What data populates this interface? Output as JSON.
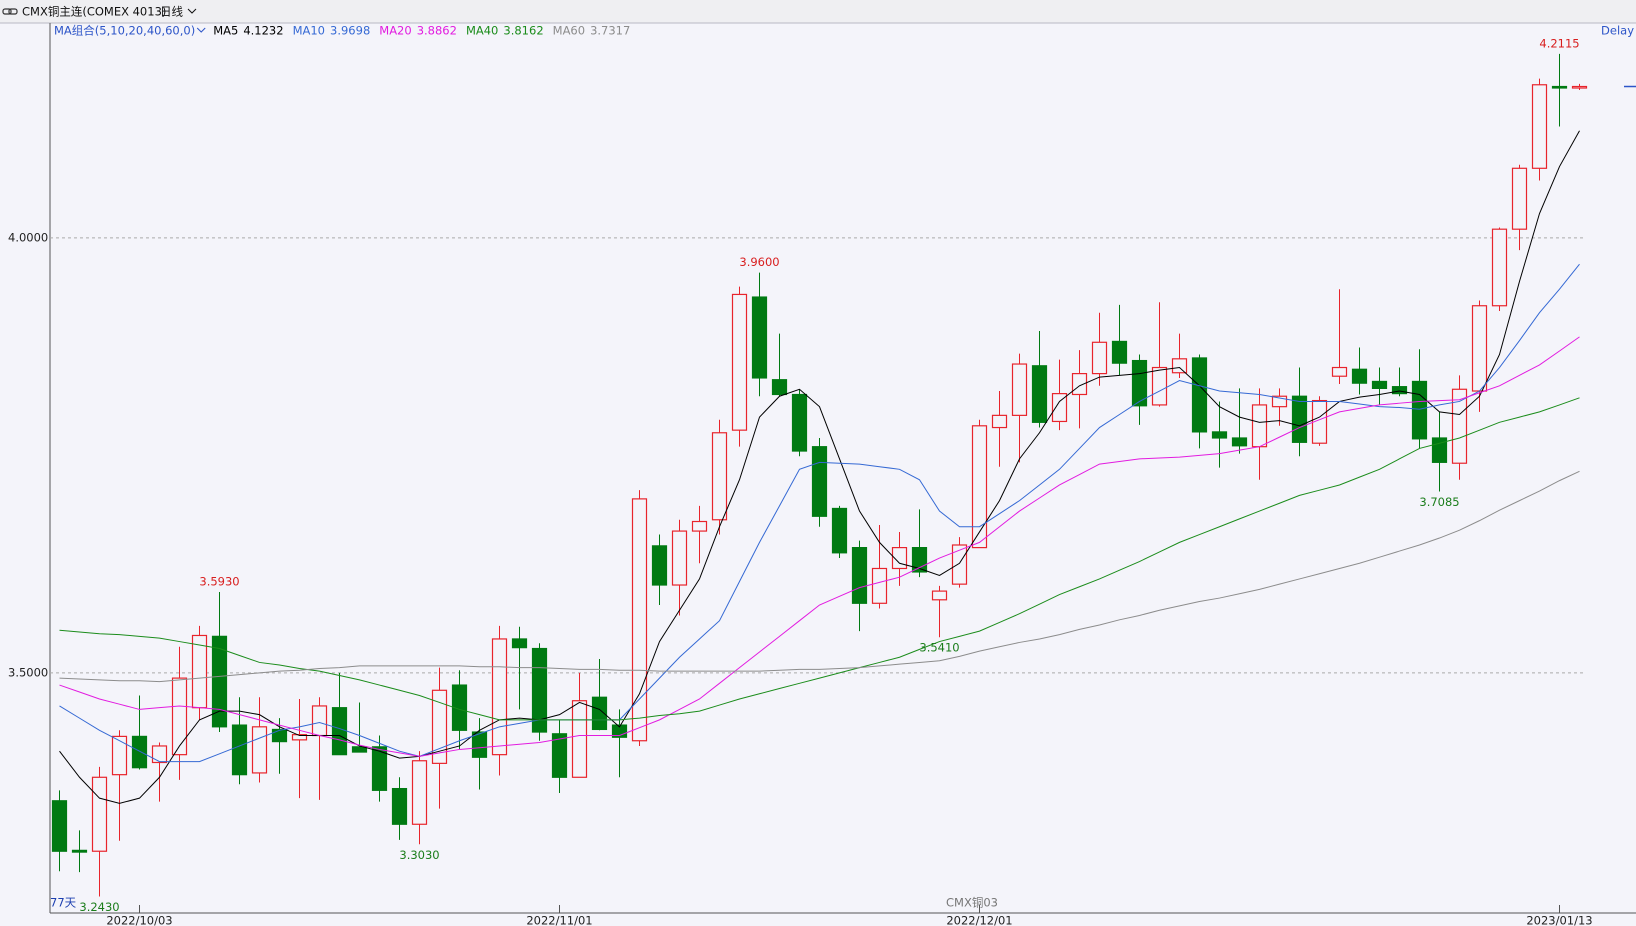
{
  "chart_data": {
    "type": "candlestick",
    "title": "CMX铜主连(COMEX 4013)",
    "period": "日线",
    "status": "Delay",
    "indicator": "MA组合(5,10,20,40,60,0)",
    "count_label": "77天",
    "footer": "CMX铜03",
    "up_color": "#e8242c",
    "down_color": "#007a12",
    "categories": [
      null,
      null,
      null,
      null,
      "2022/10/03",
      null,
      null,
      null,
      null,
      null,
      null,
      null,
      null,
      null,
      null,
      null,
      null,
      null,
      null,
      null,
      null,
      null,
      null,
      null,
      null,
      "2022/11/01",
      null,
      null,
      null,
      null,
      null,
      null,
      null,
      null,
      null,
      null,
      null,
      null,
      null,
      null,
      null,
      null,
      null,
      null,
      null,
      null,
      "2022/12/01",
      null,
      null,
      null,
      null,
      null,
      null,
      null,
      null,
      null,
      null,
      null,
      null,
      null,
      null,
      null,
      null,
      null,
      null,
      null,
      null,
      null,
      null,
      null,
      null,
      null,
      null,
      null,
      null,
      "2023/01/13",
      null
    ],
    "open": [
      3.353,
      3.296,
      3.295,
      3.383,
      3.427,
      3.397,
      3.406,
      3.46,
      3.542,
      3.44,
      3.385,
      3.435,
      3.423,
      3.428,
      3.46,
      3.415,
      3.415,
      3.367,
      3.326,
      3.396,
      3.486,
      3.432,
      3.406,
      3.539,
      3.528,
      3.43,
      3.38,
      3.472,
      3.44,
      3.422,
      3.646,
      3.601,
      3.663,
      3.676,
      3.779,
      3.932,
      3.837,
      3.82,
      3.76,
      3.689,
      3.644,
      3.58,
      3.62,
      3.644,
      3.584,
      3.602,
      3.644,
      3.782,
      3.796,
      3.853,
      3.789,
      3.82,
      3.844,
      3.881,
      3.859,
      3.808,
      3.845,
      3.862,
      3.777,
      3.77,
      3.76,
      3.806,
      3.818,
      3.764,
      3.841,
      3.849,
      3.835,
      3.829,
      3.835,
      3.77,
      3.741,
      3.824,
      3.922,
      4.01,
      4.08,
      4.174,
      4.173
    ],
    "high": [
      3.365,
      3.319,
      3.392,
      3.434,
      3.474,
      3.42,
      3.53,
      3.554,
      3.593,
      3.472,
      3.472,
      3.448,
      3.47,
      3.472,
      3.5,
      3.466,
      3.428,
      3.38,
      3.41,
      3.506,
      3.503,
      3.448,
      3.554,
      3.553,
      3.534,
      3.446,
      3.5,
      3.516,
      3.458,
      3.71,
      3.659,
      3.676,
      3.692,
      3.791,
      3.944,
      3.96,
      3.89,
      3.826,
      3.77,
      3.692,
      3.652,
      3.67,
      3.662,
      3.688,
      3.6,
      3.656,
      3.791,
      3.824,
      3.867,
      3.893,
      3.86,
      3.871,
      3.914,
      3.923,
      3.866,
      3.926,
      3.89,
      3.866,
      3.812,
      3.827,
      3.827,
      3.827,
      3.851,
      3.818,
      3.941,
      3.874,
      3.851,
      3.851,
      3.872,
      3.8,
      3.842,
      3.928,
      4.012,
      4.084,
      4.183,
      4.2115,
      4.177
    ],
    "low": [
      3.272,
      3.271,
      3.243,
      3.307,
      3.389,
      3.352,
      3.377,
      3.446,
      3.432,
      3.372,
      3.374,
      3.384,
      3.356,
      3.354,
      3.406,
      3.409,
      3.352,
      3.308,
      3.303,
      3.344,
      3.412,
      3.366,
      3.382,
      3.458,
      3.422,
      3.362,
      3.38,
      3.434,
      3.38,
      3.416,
      3.578,
      3.566,
      3.626,
      3.659,
      3.76,
      3.818,
      3.818,
      3.749,
      3.668,
      3.632,
      3.548,
      3.574,
      3.6,
      3.61,
      3.541,
      3.598,
      3.644,
      3.737,
      3.742,
      3.782,
      3.779,
      3.781,
      3.83,
      3.842,
      3.785,
      3.806,
      3.839,
      3.758,
      3.736,
      3.752,
      3.722,
      3.784,
      3.749,
      3.761,
      3.832,
      3.82,
      3.808,
      3.818,
      3.758,
      3.7085,
      3.722,
      3.8,
      3.916,
      3.986,
      4.066,
      4.128,
      4.17
    ],
    "close": [
      3.295,
      3.294,
      3.38,
      3.427,
      3.391,
      3.416,
      3.494,
      3.543,
      3.438,
      3.383,
      3.438,
      3.421,
      3.429,
      3.462,
      3.406,
      3.409,
      3.365,
      3.326,
      3.399,
      3.48,
      3.434,
      3.403,
      3.539,
      3.529,
      3.432,
      3.38,
      3.468,
      3.435,
      3.426,
      3.7,
      3.601,
      3.663,
      3.674,
      3.776,
      3.935,
      3.839,
      3.82,
      3.755,
      3.68,
      3.638,
      3.58,
      3.62,
      3.644,
      3.616,
      3.594,
      3.647,
      3.784,
      3.796,
      3.855,
      3.788,
      3.821,
      3.844,
      3.88,
      3.856,
      3.807,
      3.851,
      3.861,
      3.777,
      3.77,
      3.761,
      3.808,
      3.818,
      3.765,
      3.813,
      3.851,
      3.833,
      3.827,
      3.821,
      3.769,
      3.742,
      3.826,
      3.922,
      4.01,
      4.08,
      4.176,
      4.173,
      4.174
    ],
    "annotations": [
      {
        "index": 8,
        "of": "high",
        "label": "3.5930"
      },
      {
        "index": 35,
        "of": "high",
        "label": "3.9600"
      },
      {
        "index": 75,
        "of": "high",
        "label": "4.2115"
      },
      {
        "index": 2,
        "of": "low",
        "label": "3.2430"
      },
      {
        "index": 18,
        "of": "low",
        "label": "3.3030"
      },
      {
        "index": 44,
        "of": "low",
        "label": "3.5410"
      },
      {
        "index": 69,
        "of": "low",
        "label": "3.7085"
      }
    ],
    "series": [
      {
        "name": "MA5",
        "color": "#000000",
        "values": [
          3.41,
          3.38,
          3.356,
          3.35,
          3.356,
          3.38,
          3.416,
          3.446,
          3.456,
          3.456,
          3.452,
          3.438,
          3.428,
          3.428,
          3.428,
          3.416,
          3.41,
          3.402,
          3.404,
          3.41,
          3.416,
          3.434,
          3.446,
          3.448,
          3.446,
          3.452,
          3.466,
          3.458,
          3.438,
          3.476,
          3.536,
          3.572,
          3.608,
          3.668,
          3.722,
          3.794,
          3.818,
          3.826,
          3.806,
          3.746,
          3.686,
          3.65,
          3.626,
          3.62,
          3.612,
          3.626,
          3.662,
          3.698,
          3.746,
          3.776,
          3.812,
          3.83,
          3.84,
          3.842,
          3.844,
          3.848,
          3.851,
          3.83,
          3.806,
          3.794,
          3.788,
          3.79,
          3.784,
          3.794,
          3.812,
          3.817,
          3.82,
          3.824,
          3.82,
          3.8,
          3.797,
          3.818,
          3.866,
          3.95,
          4.028,
          4.082,
          4.1232
        ]
      },
      {
        "name": "MA10",
        "color": "#3569d4",
        "values": [
          3.462,
          3.448,
          3.434,
          3.422,
          3.41,
          3.398,
          3.398,
          3.398,
          3.407,
          3.416,
          3.425,
          3.434,
          3.438,
          3.443,
          3.436,
          3.428,
          3.419,
          3.41,
          3.404,
          3.413,
          3.422,
          3.43,
          3.438,
          3.442,
          3.446,
          3.446,
          3.446,
          3.446,
          3.446,
          3.47,
          3.494,
          3.518,
          3.539,
          3.56,
          3.605,
          3.65,
          3.692,
          3.734,
          3.742,
          3.741,
          3.74,
          3.737,
          3.734,
          3.722,
          3.686,
          3.668,
          3.668,
          3.683,
          3.698,
          3.716,
          3.734,
          3.758,
          3.782,
          3.797,
          3.812,
          3.824,
          3.836,
          3.83,
          3.824,
          3.822,
          3.82,
          3.816,
          3.812,
          3.812,
          3.812,
          3.809,
          3.806,
          3.805,
          3.803,
          3.808,
          3.812,
          3.824,
          3.851,
          3.882,
          3.914,
          3.941,
          3.9698
        ]
      },
      {
        "name": "MA20",
        "color": "#e21ce0",
        "values": [
          3.486,
          3.478,
          3.47,
          3.464,
          3.458,
          3.46,
          3.462,
          3.46,
          3.458,
          3.452,
          3.446,
          3.44,
          3.434,
          3.428,
          3.423,
          3.417,
          3.412,
          3.408,
          3.404,
          3.408,
          3.412,
          3.414,
          3.416,
          3.418,
          3.42,
          3.424,
          3.428,
          3.428,
          3.428,
          3.437,
          3.446,
          3.458,
          3.47,
          3.488,
          3.506,
          3.524,
          3.542,
          3.56,
          3.578,
          3.588,
          3.598,
          3.604,
          3.61,
          3.621,
          3.632,
          3.641,
          3.65,
          3.668,
          3.686,
          3.701,
          3.716,
          3.728,
          3.74,
          3.743,
          3.746,
          3.747,
          3.748,
          3.75,
          3.752,
          3.756,
          3.76,
          3.771,
          3.782,
          3.791,
          3.8,
          3.804,
          3.808,
          3.81,
          3.812,
          3.813,
          3.814,
          3.822,
          3.83,
          3.842,
          3.854,
          3.87,
          3.8862
        ]
      },
      {
        "name": "MA40",
        "color": "#1b8c1b",
        "values": [
          3.549,
          3.547,
          3.545,
          3.544,
          3.542,
          3.54,
          3.536,
          3.532,
          3.528,
          3.52,
          3.512,
          3.509,
          3.505,
          3.502,
          3.497,
          3.492,
          3.486,
          3.48,
          3.474,
          3.466,
          3.458,
          3.452,
          3.446,
          3.446,
          3.446,
          3.446,
          3.446,
          3.446,
          3.446,
          3.448,
          3.451,
          3.453,
          3.456,
          3.463,
          3.47,
          3.476,
          3.482,
          3.488,
          3.494,
          3.5,
          3.506,
          3.512,
          3.518,
          3.527,
          3.536,
          3.542,
          3.548,
          3.558,
          3.568,
          3.579,
          3.59,
          3.599,
          3.608,
          3.618,
          3.628,
          3.639,
          3.65,
          3.659,
          3.668,
          3.677,
          3.686,
          3.695,
          3.704,
          3.71,
          3.716,
          3.725,
          3.734,
          3.746,
          3.758,
          3.764,
          3.77,
          3.779,
          3.788,
          3.794,
          3.8,
          3.808,
          3.8162
        ]
      },
      {
        "name": "MA60",
        "color": "#8c8c8c",
        "values": [
          3.494,
          3.493,
          3.492,
          3.491,
          3.491,
          3.49,
          3.492,
          3.494,
          3.496,
          3.498,
          3.5,
          3.502,
          3.503,
          3.505,
          3.506,
          3.508,
          3.508,
          3.508,
          3.508,
          3.508,
          3.508,
          3.507,
          3.507,
          3.506,
          3.506,
          3.505,
          3.504,
          3.504,
          3.503,
          3.503,
          3.502,
          3.502,
          3.502,
          3.502,
          3.502,
          3.502,
          3.503,
          3.504,
          3.504,
          3.505,
          3.506,
          3.508,
          3.51,
          3.512,
          3.514,
          3.519,
          3.525,
          3.53,
          3.535,
          3.539,
          3.544,
          3.55,
          3.555,
          3.561,
          3.566,
          3.572,
          3.577,
          3.582,
          3.586,
          3.591,
          3.596,
          3.602,
          3.608,
          3.614,
          3.62,
          3.626,
          3.633,
          3.64,
          3.647,
          3.655,
          3.664,
          3.675,
          3.687,
          3.698,
          3.709,
          3.721,
          3.7317
        ]
      }
    ],
    "ylim": [
      3.224,
      4.247
    ],
    "yticks": [
      {
        "value": 3.5,
        "label": "3.5000"
      },
      {
        "value": 4,
        "label": "4.0000"
      }
    ],
    "grid": true
  }
}
